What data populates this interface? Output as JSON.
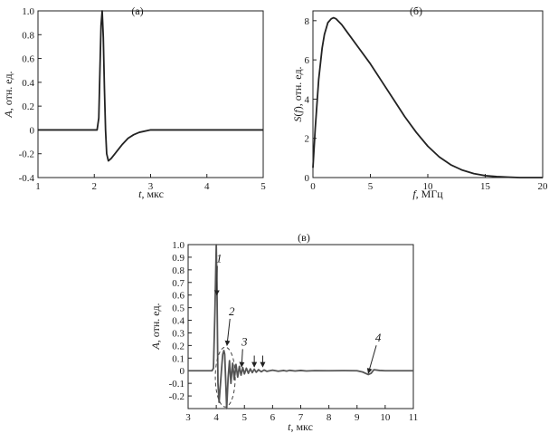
{
  "chart_data": [
    {
      "type": "line",
      "panel_label": "(а)",
      "xlabel": "t, мкс",
      "ylabel": "A, отн. ед.",
      "xlim": [
        1,
        5
      ],
      "ylim": [
        -0.4,
        1.0
      ],
      "xticks": [
        1,
        2,
        3,
        4,
        5
      ],
      "yticks": [
        -0.4,
        -0.2,
        0,
        0.2,
        0.4,
        0.6,
        0.8,
        1.0
      ],
      "xtick_labels": [
        "1",
        "2",
        "3",
        "4",
        "5"
      ],
      "ytick_labels": [
        "-0.4",
        "-0.2",
        "0",
        "0.2",
        "0.4",
        "0.6",
        "0.8",
        "1.0"
      ],
      "grid": false,
      "color": "#222222",
      "series": [
        {
          "x": [
            1.0,
            2.0,
            2.05,
            2.08,
            2.1,
            2.12,
            2.14,
            2.16,
            2.18,
            2.2,
            2.22,
            2.25,
            2.3,
            2.4,
            2.5,
            2.6,
            2.7,
            2.8,
            3.0,
            3.5,
            4.0,
            5.0
          ],
          "y": [
            0,
            0,
            0,
            0.1,
            0.5,
            0.88,
            1.0,
            0.78,
            0.35,
            0.0,
            -0.2,
            -0.26,
            -0.24,
            -0.18,
            -0.12,
            -0.07,
            -0.04,
            -0.02,
            0,
            0,
            0,
            0
          ]
        }
      ]
    },
    {
      "type": "line",
      "panel_label": "(б)",
      "xlabel": "f, МГц",
      "ylabel": "S(f), отн. ед.",
      "xlim": [
        0,
        20
      ],
      "ylim": [
        0,
        8.5
      ],
      "xticks": [
        0,
        5,
        10,
        15,
        20
      ],
      "yticks": [
        0,
        2,
        4,
        6,
        8
      ],
      "xtick_labels": [
        "0",
        "5",
        "10",
        "15",
        "20"
      ],
      "ytick_labels": [
        "0",
        "2",
        "4",
        "6",
        "8"
      ],
      "grid": false,
      "color": "#222222",
      "series": [
        {
          "x": [
            0,
            0.2,
            0.5,
            0.8,
            1.0,
            1.3,
            1.6,
            1.8,
            2.0,
            2.5,
            3.0,
            4.0,
            5.0,
            6.0,
            7.0,
            8.0,
            9.0,
            10.0,
            11.0,
            12.0,
            13.0,
            14.0,
            15.0,
            16.0,
            17.0,
            18.0,
            19.0,
            20.0
          ],
          "y": [
            0.5,
            2.5,
            5.0,
            6.6,
            7.3,
            7.9,
            8.1,
            8.15,
            8.1,
            7.8,
            7.4,
            6.6,
            5.8,
            4.9,
            4.0,
            3.1,
            2.3,
            1.6,
            1.05,
            0.65,
            0.38,
            0.2,
            0.1,
            0.05,
            0.02,
            0.0,
            0.0,
            0.0
          ]
        }
      ]
    },
    {
      "type": "line",
      "panel_label": "(в)",
      "xlabel": "t, мкс",
      "ylabel": "A, отн. ед.",
      "xlim": [
        3,
        11
      ],
      "ylim": [
        -0.3,
        1.0
      ],
      "xticks": [
        3,
        4,
        5,
        6,
        7,
        8,
        9,
        10,
        11
      ],
      "yticks": [
        -0.2,
        -0.1,
        0,
        0.1,
        0.2,
        0.3,
        0.4,
        0.5,
        0.6,
        0.7,
        0.8,
        0.9,
        1.0
      ],
      "xtick_labels": [
        "3",
        "4",
        "5",
        "6",
        "7",
        "8",
        "9",
        "10",
        "11"
      ],
      "ytick_labels": [
        "-0.2",
        "-0.1",
        "0",
        "0.1",
        "0.2",
        "0.3",
        "0.4",
        "0.5",
        "0.6",
        "0.7",
        "0.8",
        "0.9",
        "1.0"
      ],
      "grid": false,
      "color": "#555555",
      "annotations": [
        "1",
        "2",
        "3",
        "4"
      ],
      "series": [
        {
          "x": [
            3.0,
            3.85,
            3.9,
            3.95,
            4.0,
            4.03,
            4.06,
            4.1,
            4.15,
            4.2,
            4.23,
            4.27,
            4.3,
            4.33,
            4.37,
            4.42,
            4.47,
            4.52,
            4.58,
            4.64,
            4.7,
            4.76,
            4.82,
            4.88,
            4.94,
            5.0,
            5.07,
            5.14,
            5.21,
            5.28,
            5.35,
            5.42,
            5.5,
            5.6,
            5.7,
            5.8,
            6.0,
            6.2,
            6.4,
            6.5,
            6.6,
            6.8,
            7.0,
            7.2,
            7.5,
            8.0,
            8.5,
            9.0,
            9.2,
            9.3,
            9.4,
            9.5,
            9.6,
            9.8,
            10.0,
            11.0
          ],
          "y": [
            0,
            0,
            0.02,
            0.45,
            1.0,
            0.55,
            -0.1,
            -0.25,
            -0.1,
            0.05,
            0.13,
            0.16,
            0.13,
            -0.05,
            -0.3,
            -0.06,
            0.08,
            -0.1,
            0.06,
            -0.07,
            0.05,
            -0.05,
            0.035,
            -0.035,
            0.025,
            -0.025,
            0.02,
            -0.02,
            0.015,
            -0.015,
            0.012,
            -0.012,
            0.008,
            -0.008,
            0.006,
            -0.005,
            0.004,
            -0.004,
            0.002,
            -0.003,
            0.003,
            -0.002,
            0.002,
            -0.002,
            0.001,
            0.0,
            0.001,
            0.0,
            -0.01,
            -0.02,
            -0.03,
            -0.02,
            0.008,
            0.002,
            0.0,
            0.0
          ]
        }
      ]
    }
  ]
}
